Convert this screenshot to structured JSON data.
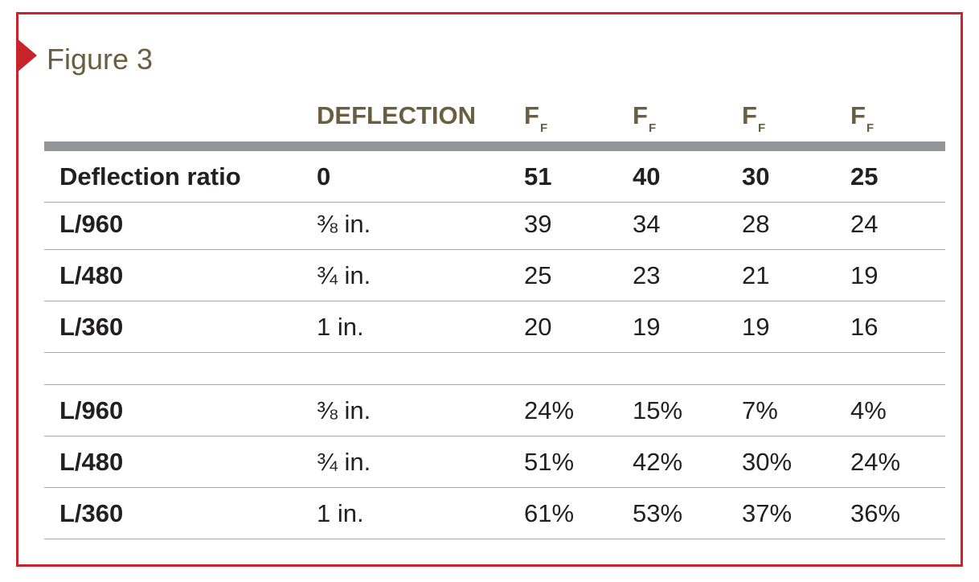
{
  "figure": {
    "title": "Figure 3"
  },
  "header": {
    "deflection": "DEFLECTION",
    "ff": [
      "F",
      "F",
      "F",
      "F"
    ],
    "ff_sub": [
      "F",
      "F",
      "F",
      "F"
    ]
  },
  "rows": [
    {
      "label": "Deflection ratio",
      "deflection": "0",
      "values": [
        "51",
        "40",
        "30",
        "25"
      ]
    },
    {
      "label": "L/960",
      "deflection": "⅜ in.",
      "values": [
        "39",
        "34",
        "28",
        "24"
      ]
    },
    {
      "label": "L/480",
      "deflection": "¾ in.",
      "values": [
        "25",
        "23",
        "21",
        "19"
      ]
    },
    {
      "label": "L/360",
      "deflection": "1 in.",
      "values": [
        "20",
        "19",
        "19",
        "16"
      ]
    },
    {
      "label": "",
      "deflection": "",
      "values": [
        "",
        "",
        "",
        ""
      ]
    },
    {
      "label": "L/960",
      "deflection": "⅜ in.",
      "values": [
        "24%",
        "15%",
        "7%",
        "4%"
      ]
    },
    {
      "label": "L/480",
      "deflection": "¾ in.",
      "values": [
        "51%",
        "42%",
        "30%",
        "24%"
      ]
    },
    {
      "label": "L/360",
      "deflection": "1 in.",
      "values": [
        "61%",
        "53%",
        "37%",
        "36%"
      ]
    }
  ],
  "colors": {
    "frame": "#c9232c",
    "header_text": "#6b5d3f",
    "header_rule": "#939598",
    "row_rule": "#a7a9ac",
    "body_text": "#231f20"
  }
}
